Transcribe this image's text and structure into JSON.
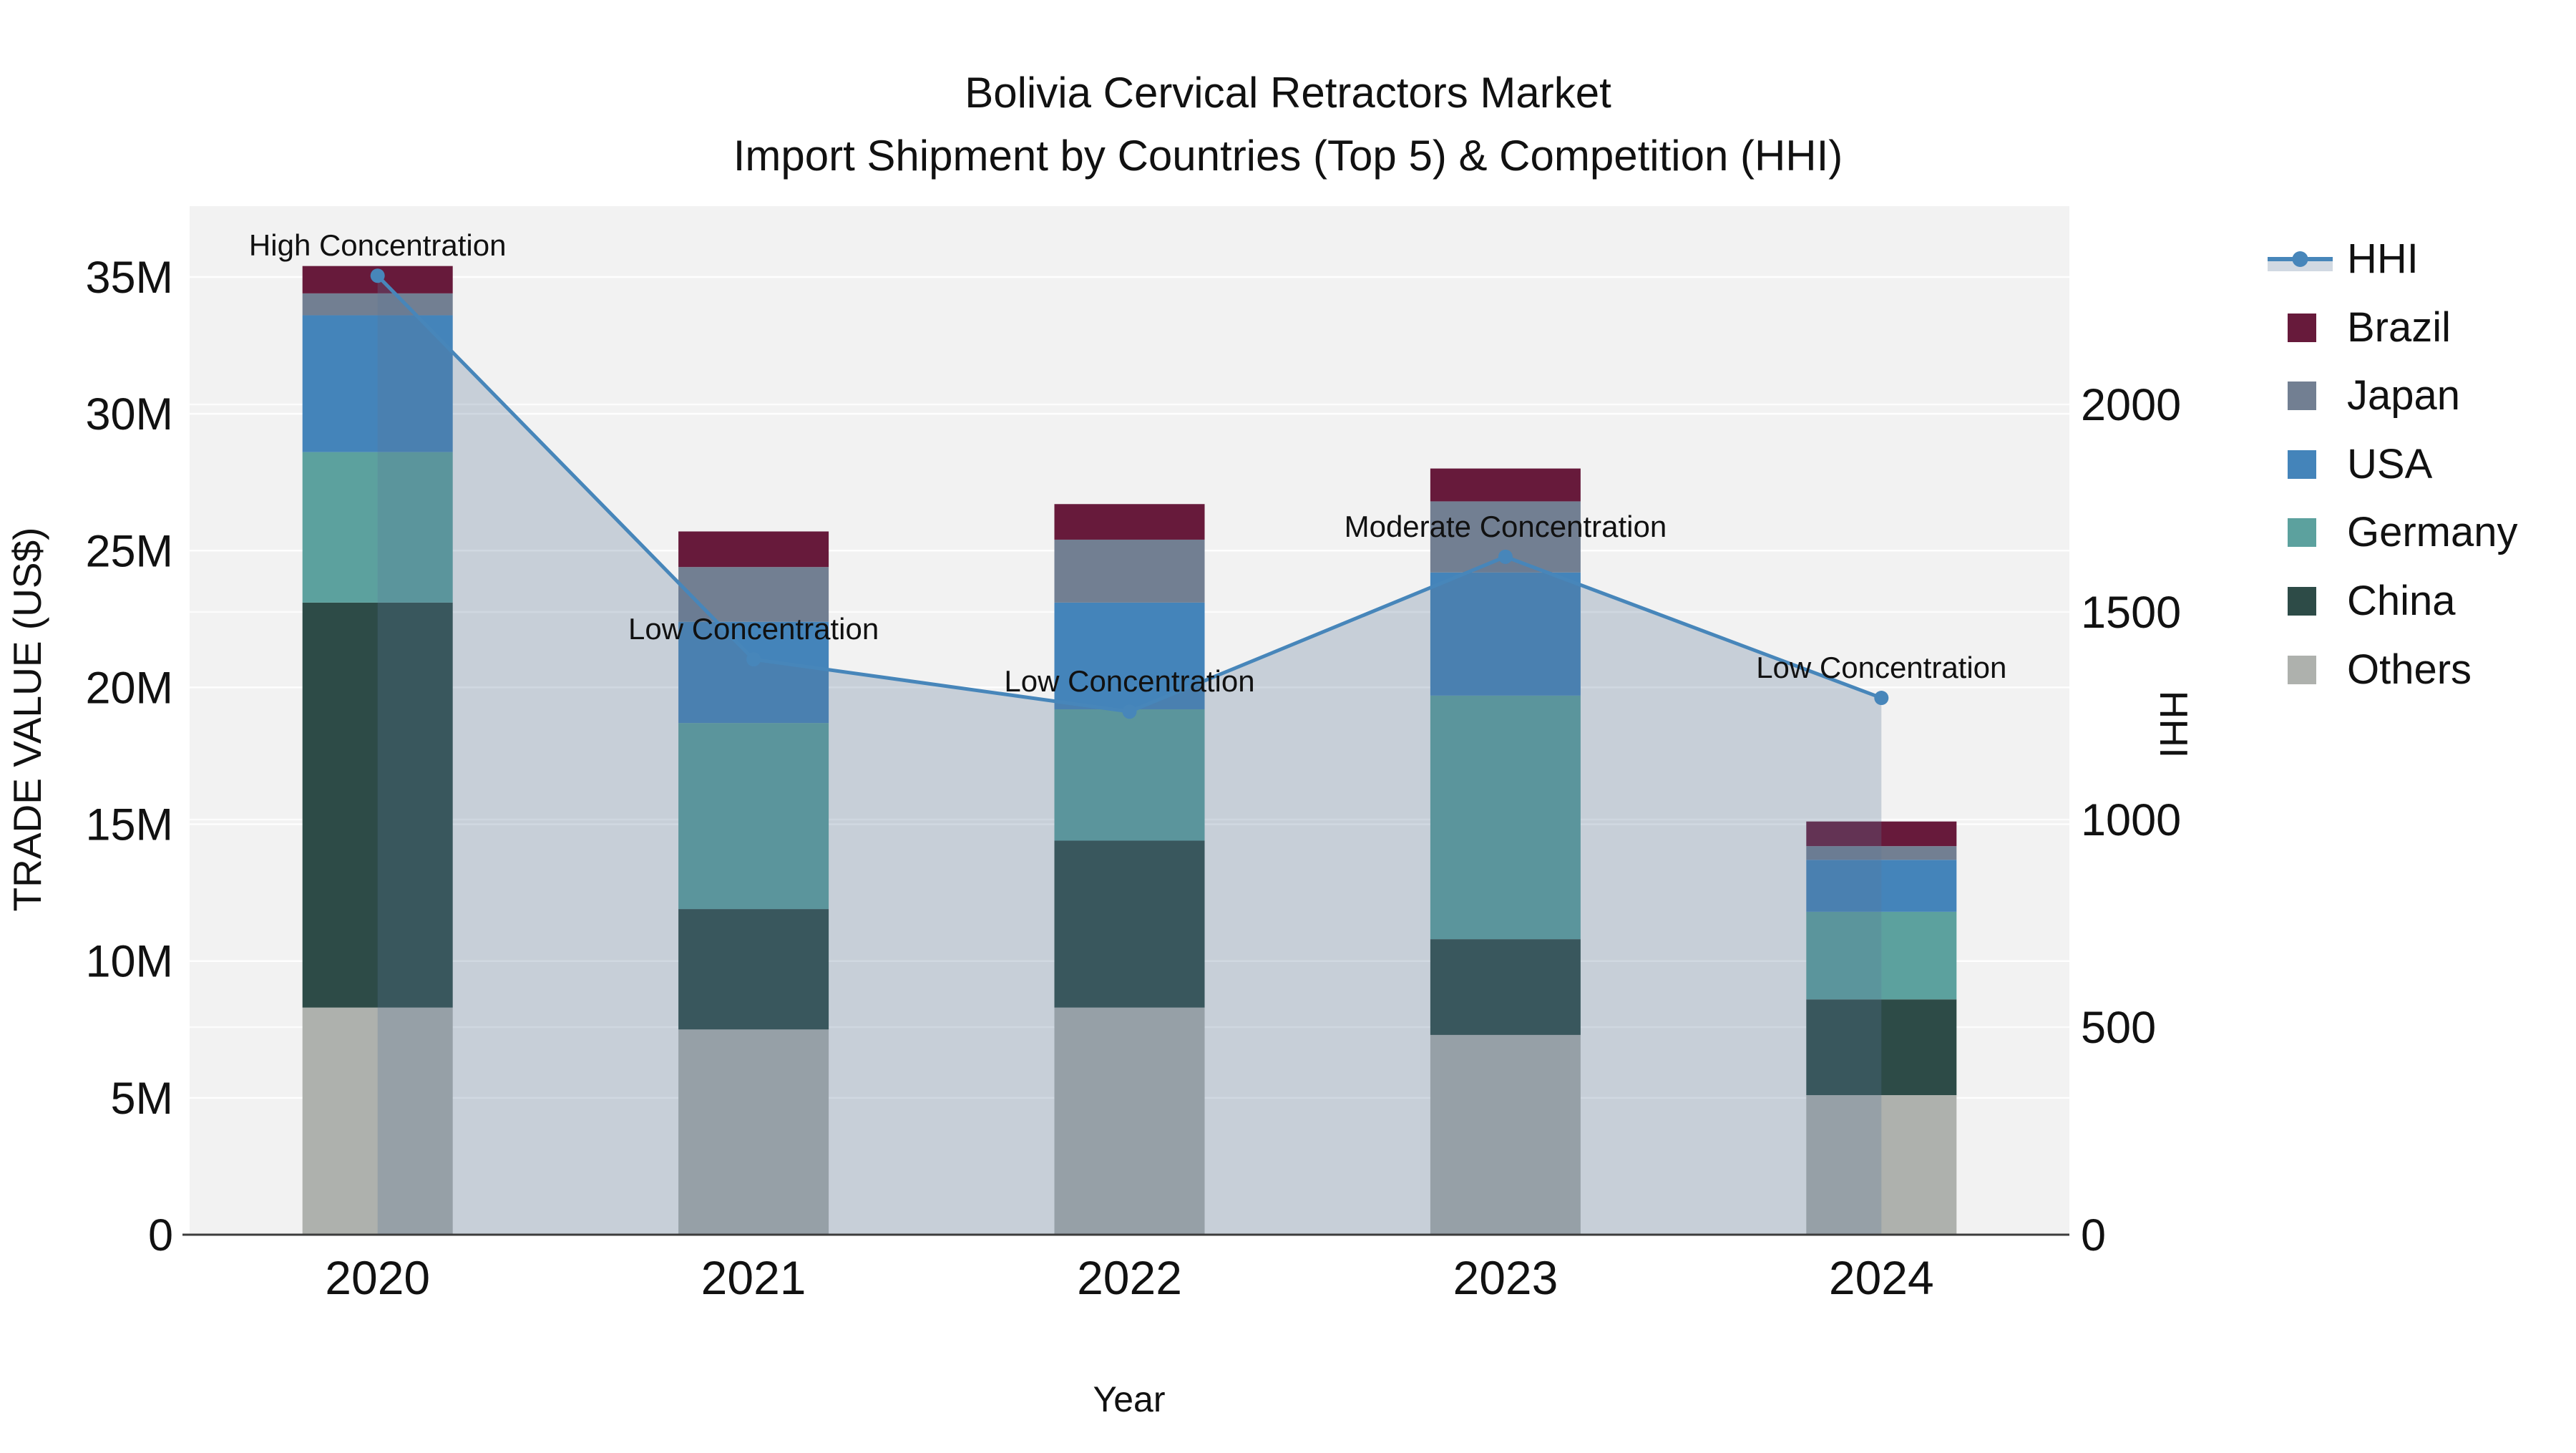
{
  "title": {
    "line1": "Bolivia Cervical Retractors Market",
    "line2": "Import Shipment by Countries (Top 5) & Competition (HHI)"
  },
  "axes": {
    "x_title": "Year",
    "y_left_title": "TRADE VALUE (US$)",
    "y_right_title": "HHI",
    "y_left_ticks": [
      "0",
      "5M",
      "10M",
      "15M",
      "20M",
      "25M",
      "30M",
      "35M"
    ],
    "y_right_ticks": [
      "0",
      "500",
      "1000",
      "1500",
      "2000"
    ],
    "x_ticks": [
      "2020",
      "2021",
      "2022",
      "2023",
      "2024"
    ]
  },
  "legend": {
    "items": [
      {
        "label": "HHI",
        "type": "line",
        "series": "hhi"
      },
      {
        "label": "Brazil",
        "type": "swatch",
        "series": "brazil"
      },
      {
        "label": "Japan",
        "type": "swatch",
        "series": "japan"
      },
      {
        "label": "USA",
        "type": "swatch",
        "series": "usa"
      },
      {
        "label": "Germany",
        "type": "swatch",
        "series": "germany"
      },
      {
        "label": "China",
        "type": "swatch",
        "series": "china"
      },
      {
        "label": "Others",
        "type": "swatch",
        "series": "others"
      }
    ]
  },
  "colors": {
    "brazil": "#671A3B",
    "japan": "#727F92",
    "usa": "#4484BA",
    "germany": "#5CA19E",
    "china": "#2D4B47",
    "others": "#AEB1AD",
    "hhi": "#4786BA",
    "hhi_fill": "rgba(88,120,152,0.28)",
    "plot_bg": "#f2f2f2",
    "gridline": "#ffffff",
    "axis_line": "#3c3c3c",
    "text": "#111111"
  },
  "chart_data": {
    "type": [
      "bar",
      "line"
    ],
    "title": "Bolivia Cervical Retractors Market — Import Shipment by Countries (Top 5) & Competition (HHI)",
    "categories": [
      "2020",
      "2021",
      "2022",
      "2023",
      "2024"
    ],
    "bar_unit": "million US$ (trade value)",
    "series": [
      {
        "name": "Brazil",
        "key": "brazil",
        "values": [
          1.0,
          1.3,
          1.3,
          1.2,
          0.9
        ]
      },
      {
        "name": "Japan",
        "key": "japan",
        "values": [
          0.8,
          2.0,
          2.3,
          2.6,
          0.5
        ]
      },
      {
        "name": "USA",
        "key": "usa",
        "values": [
          5.0,
          3.7,
          3.9,
          4.5,
          1.9
        ]
      },
      {
        "name": "Germany",
        "key": "germany",
        "values": [
          5.5,
          6.8,
          4.8,
          8.9,
          3.2
        ]
      },
      {
        "name": "China",
        "key": "china",
        "values": [
          14.8,
          4.4,
          6.1,
          3.5,
          3.5
        ]
      },
      {
        "name": "Others",
        "key": "others",
        "values": [
          8.3,
          7.5,
          8.3,
          7.3,
          5.1
        ]
      }
    ],
    "stack_order_bottom_to_top": [
      "others",
      "china",
      "germany",
      "usa",
      "japan",
      "brazil"
    ],
    "line_series": {
      "name": "HHI",
      "key": "hhi",
      "values": [
        2310,
        1386,
        1260,
        1633,
        1293
      ],
      "axis": "right"
    },
    "annotations": [
      {
        "text": "High Concentration",
        "category_index": 0
      },
      {
        "text": "Low Concentration",
        "category_index": 1
      },
      {
        "text": "Low Concentration",
        "category_index": 2
      },
      {
        "text": "Moderate Concentration",
        "category_index": 3
      },
      {
        "text": "Low Concentration",
        "category_index": 4
      }
    ],
    "xlabel": "Year",
    "ylabel_left": "TRADE VALUE (US$)",
    "ylabel_right": "HHI",
    "ylim_left_millions": [
      0,
      37.6
    ],
    "ylim_right": [
      0,
      2478
    ],
    "grid": true,
    "legend_position": "right"
  }
}
